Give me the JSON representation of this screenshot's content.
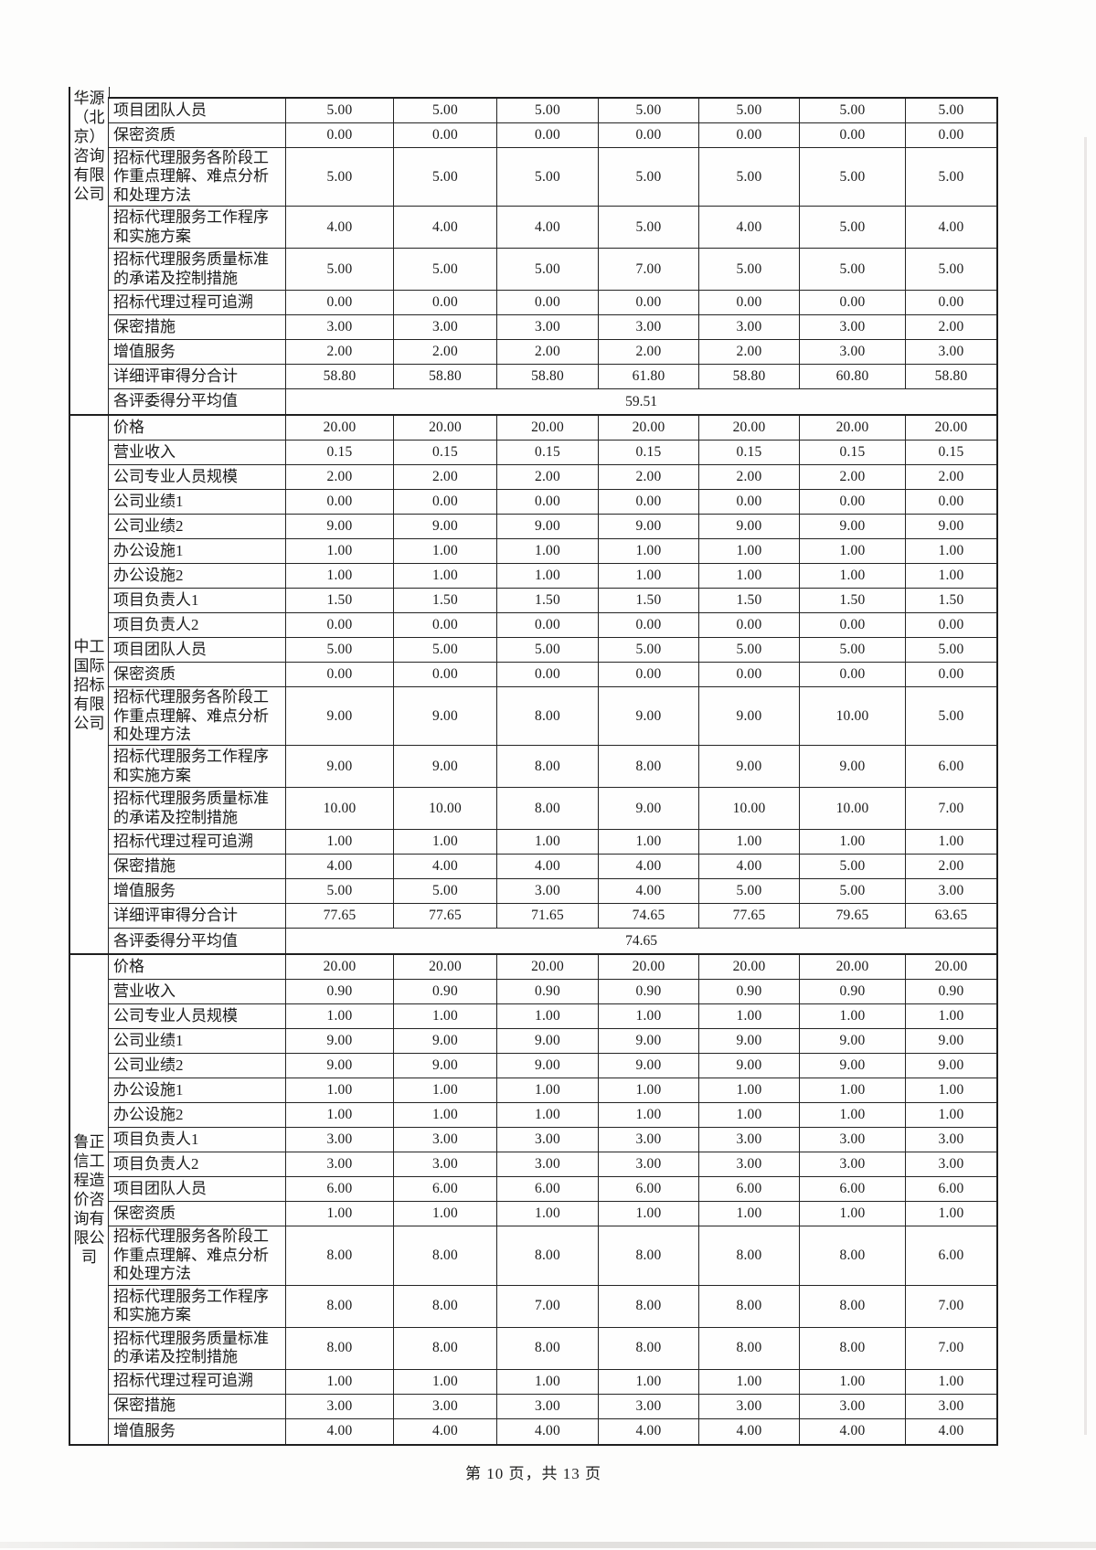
{
  "page": {
    "footer": "第 10 页，共 13 页"
  },
  "table": {
    "sections": [
      {
        "company": "华源（北京）咨询有限公司",
        "company_display": "华源\n（北\n京）\n咨询\n有限\n公司",
        "company_align": "top",
        "rows": [
          {
            "label": "项目团队人员",
            "values": [
              "5.00",
              "5.00",
              "5.00",
              "5.00",
              "5.00",
              "5.00",
              "5.00"
            ]
          },
          {
            "label": "保密资质",
            "values": [
              "0.00",
              "0.00",
              "0.00",
              "0.00",
              "0.00",
              "0.00",
              "0.00"
            ]
          },
          {
            "label": "招标代理服务各阶段工作重点理解、难点分析和处理方法",
            "values": [
              "5.00",
              "5.00",
              "5.00",
              "5.00",
              "5.00",
              "5.00",
              "5.00"
            ]
          },
          {
            "label": "招标代理服务工作程序和实施方案",
            "values": [
              "4.00",
              "4.00",
              "4.00",
              "5.00",
              "4.00",
              "5.00",
              "4.00"
            ]
          },
          {
            "label": "招标代理服务质量标准的承诺及控制措施",
            "values": [
              "5.00",
              "5.00",
              "5.00",
              "7.00",
              "5.00",
              "5.00",
              "5.00"
            ]
          },
          {
            "label": "招标代理过程可追溯",
            "values": [
              "0.00",
              "0.00",
              "0.00",
              "0.00",
              "0.00",
              "0.00",
              "0.00"
            ]
          },
          {
            "label": "保密措施",
            "values": [
              "3.00",
              "3.00",
              "3.00",
              "3.00",
              "3.00",
              "3.00",
              "2.00"
            ]
          },
          {
            "label": "增值服务",
            "values": [
              "2.00",
              "2.00",
              "2.00",
              "2.00",
              "2.00",
              "3.00",
              "3.00"
            ]
          },
          {
            "label": "详细评审得分合计",
            "values": [
              "58.80",
              "58.80",
              "58.80",
              "61.80",
              "58.80",
              "60.80",
              "58.80"
            ]
          }
        ],
        "average_label": "各评委得分平均值",
        "average_value": "59.51"
      },
      {
        "company": "中工国际招标有限公司",
        "company_display": "中工\n国际\n招标\n有限\n公司",
        "company_align": "center",
        "rows": [
          {
            "label": "价格",
            "values": [
              "20.00",
              "20.00",
              "20.00",
              "20.00",
              "20.00",
              "20.00",
              "20.00"
            ]
          },
          {
            "label": "营业收入",
            "values": [
              "0.15",
              "0.15",
              "0.15",
              "0.15",
              "0.15",
              "0.15",
              "0.15"
            ]
          },
          {
            "label": "公司专业人员规模",
            "values": [
              "2.00",
              "2.00",
              "2.00",
              "2.00",
              "2.00",
              "2.00",
              "2.00"
            ]
          },
          {
            "label": "公司业绩1",
            "values": [
              "0.00",
              "0.00",
              "0.00",
              "0.00",
              "0.00",
              "0.00",
              "0.00"
            ]
          },
          {
            "label": "公司业绩2",
            "values": [
              "9.00",
              "9.00",
              "9.00",
              "9.00",
              "9.00",
              "9.00",
              "9.00"
            ]
          },
          {
            "label": "办公设施1",
            "values": [
              "1.00",
              "1.00",
              "1.00",
              "1.00",
              "1.00",
              "1.00",
              "1.00"
            ]
          },
          {
            "label": "办公设施2",
            "values": [
              "1.00",
              "1.00",
              "1.00",
              "1.00",
              "1.00",
              "1.00",
              "1.00"
            ]
          },
          {
            "label": "项目负责人1",
            "values": [
              "1.50",
              "1.50",
              "1.50",
              "1.50",
              "1.50",
              "1.50",
              "1.50"
            ]
          },
          {
            "label": "项目负责人2",
            "values": [
              "0.00",
              "0.00",
              "0.00",
              "0.00",
              "0.00",
              "0.00",
              "0.00"
            ]
          },
          {
            "label": "项目团队人员",
            "values": [
              "5.00",
              "5.00",
              "5.00",
              "5.00",
              "5.00",
              "5.00",
              "5.00"
            ]
          },
          {
            "label": "保密资质",
            "values": [
              "0.00",
              "0.00",
              "0.00",
              "0.00",
              "0.00",
              "0.00",
              "0.00"
            ]
          },
          {
            "label": "招标代理服务各阶段工作重点理解、难点分析和处理方法",
            "values": [
              "9.00",
              "9.00",
              "8.00",
              "9.00",
              "9.00",
              "10.00",
              "5.00"
            ]
          },
          {
            "label": "招标代理服务工作程序和实施方案",
            "values": [
              "9.00",
              "9.00",
              "8.00",
              "8.00",
              "9.00",
              "9.00",
              "6.00"
            ]
          },
          {
            "label": "招标代理服务质量标准的承诺及控制措施",
            "values": [
              "10.00",
              "10.00",
              "8.00",
              "9.00",
              "10.00",
              "10.00",
              "7.00"
            ]
          },
          {
            "label": "招标代理过程可追溯",
            "values": [
              "1.00",
              "1.00",
              "1.00",
              "1.00",
              "1.00",
              "1.00",
              "1.00"
            ]
          },
          {
            "label": "保密措施",
            "values": [
              "4.00",
              "4.00",
              "4.00",
              "4.00",
              "4.00",
              "5.00",
              "2.00"
            ]
          },
          {
            "label": "增值服务",
            "values": [
              "5.00",
              "5.00",
              "3.00",
              "4.00",
              "5.00",
              "5.00",
              "3.00"
            ]
          },
          {
            "label": "详细评审得分合计",
            "values": [
              "77.65",
              "77.65",
              "71.65",
              "74.65",
              "77.65",
              "79.65",
              "63.65"
            ]
          }
        ],
        "average_label": "各评委得分平均值",
        "average_value": "74.65"
      },
      {
        "company": "鲁正信工程造价咨询有限公司",
        "company_display": "鲁正\n信工\n程造\n价咨\n询有\n限公\n司",
        "company_align": "center",
        "rows": [
          {
            "label": "价格",
            "values": [
              "20.00",
              "20.00",
              "20.00",
              "20.00",
              "20.00",
              "20.00",
              "20.00"
            ]
          },
          {
            "label": "营业收入",
            "values": [
              "0.90",
              "0.90",
              "0.90",
              "0.90",
              "0.90",
              "0.90",
              "0.90"
            ]
          },
          {
            "label": "公司专业人员规模",
            "values": [
              "1.00",
              "1.00",
              "1.00",
              "1.00",
              "1.00",
              "1.00",
              "1.00"
            ]
          },
          {
            "label": "公司业绩1",
            "values": [
              "9.00",
              "9.00",
              "9.00",
              "9.00",
              "9.00",
              "9.00",
              "9.00"
            ]
          },
          {
            "label": "公司业绩2",
            "values": [
              "9.00",
              "9.00",
              "9.00",
              "9.00",
              "9.00",
              "9.00",
              "9.00"
            ]
          },
          {
            "label": "办公设施1",
            "values": [
              "1.00",
              "1.00",
              "1.00",
              "1.00",
              "1.00",
              "1.00",
              "1.00"
            ]
          },
          {
            "label": "办公设施2",
            "values": [
              "1.00",
              "1.00",
              "1.00",
              "1.00",
              "1.00",
              "1.00",
              "1.00"
            ]
          },
          {
            "label": "项目负责人1",
            "values": [
              "3.00",
              "3.00",
              "3.00",
              "3.00",
              "3.00",
              "3.00",
              "3.00"
            ]
          },
          {
            "label": "项目负责人2",
            "values": [
              "3.00",
              "3.00",
              "3.00",
              "3.00",
              "3.00",
              "3.00",
              "3.00"
            ]
          },
          {
            "label": "项目团队人员",
            "values": [
              "6.00",
              "6.00",
              "6.00",
              "6.00",
              "6.00",
              "6.00",
              "6.00"
            ]
          },
          {
            "label": "保密资质",
            "values": [
              "1.00",
              "1.00",
              "1.00",
              "1.00",
              "1.00",
              "1.00",
              "1.00"
            ]
          },
          {
            "label": "招标代理服务各阶段工作重点理解、难点分析和处理方法",
            "values": [
              "8.00",
              "8.00",
              "8.00",
              "8.00",
              "8.00",
              "8.00",
              "6.00"
            ]
          },
          {
            "label": "招标代理服务工作程序和实施方案",
            "values": [
              "8.00",
              "8.00",
              "7.00",
              "8.00",
              "8.00",
              "8.00",
              "7.00"
            ]
          },
          {
            "label": "招标代理服务质量标准的承诺及控制措施",
            "values": [
              "8.00",
              "8.00",
              "8.00",
              "8.00",
              "8.00",
              "8.00",
              "7.00"
            ]
          },
          {
            "label": "招标代理过程可追溯",
            "values": [
              "1.00",
              "1.00",
              "1.00",
              "1.00",
              "1.00",
              "1.00",
              "1.00"
            ]
          },
          {
            "label": "保密措施",
            "values": [
              "3.00",
              "3.00",
              "3.00",
              "3.00",
              "3.00",
              "3.00",
              "3.00"
            ]
          },
          {
            "label": "增值服务",
            "values": [
              "4.00",
              "4.00",
              "4.00",
              "4.00",
              "4.00",
              "4.00",
              "4.00"
            ]
          }
        ],
        "average_label": null,
        "average_value": null
      }
    ]
  }
}
